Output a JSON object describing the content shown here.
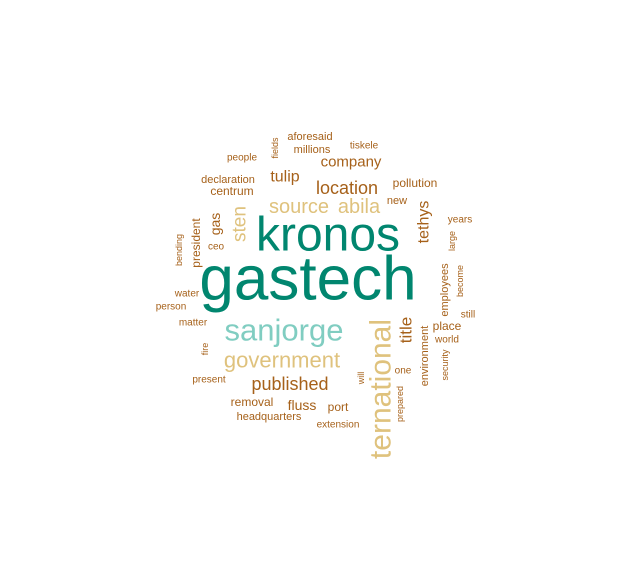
{
  "chart_data": {
    "type": "wordcloud",
    "title": "",
    "palette": {
      "top": "#01866f",
      "high": "#80cdc1",
      "mid": "#dfc27d",
      "base": "#a6611a"
    },
    "words": [
      {
        "text": "gastech",
        "weight": 100,
        "tier": "top",
        "vertical": false
      },
      {
        "text": "kronos",
        "weight": 72,
        "tier": "top",
        "vertical": false
      },
      {
        "text": "sanjorge",
        "weight": 48,
        "tier": "high",
        "vertical": false
      },
      {
        "text": "ternational",
        "weight": 48,
        "tier": "mid",
        "vertical": true
      },
      {
        "text": "government",
        "weight": 34,
        "tier": "mid",
        "vertical": false
      },
      {
        "text": "source",
        "weight": 30,
        "tier": "mid",
        "vertical": false
      },
      {
        "text": "abila",
        "weight": 30,
        "tier": "mid",
        "vertical": false
      },
      {
        "text": "sten",
        "weight": 28,
        "tier": "mid",
        "vertical": true
      },
      {
        "text": "published",
        "weight": 27,
        "tier": "base",
        "vertical": false
      },
      {
        "text": "location",
        "weight": 27,
        "tier": "base",
        "vertical": false
      },
      {
        "text": "title",
        "weight": 26,
        "tier": "base",
        "vertical": true
      },
      {
        "text": "tethys",
        "weight": 24,
        "tier": "base",
        "vertical": true
      },
      {
        "text": "tulip",
        "weight": 24,
        "tier": "base",
        "vertical": false
      },
      {
        "text": "company",
        "weight": 22,
        "tier": "base",
        "vertical": false
      },
      {
        "text": "gas",
        "weight": 20,
        "tier": "base",
        "vertical": true
      },
      {
        "text": "fluss",
        "weight": 20,
        "tier": "base",
        "vertical": false
      },
      {
        "text": "president",
        "weight": 17,
        "tier": "base",
        "vertical": true
      },
      {
        "text": "centrum",
        "weight": 17,
        "tier": "base",
        "vertical": false
      },
      {
        "text": "port",
        "weight": 17,
        "tier": "base",
        "vertical": false
      },
      {
        "text": "place",
        "weight": 16,
        "tier": "base",
        "vertical": false
      },
      {
        "text": "pollution",
        "weight": 16,
        "tier": "base",
        "vertical": false
      },
      {
        "text": "removal",
        "weight": 16,
        "tier": "base",
        "vertical": false
      },
      {
        "text": "new",
        "weight": 15,
        "tier": "base",
        "vertical": false
      },
      {
        "text": "environment",
        "weight": 15,
        "tier": "base",
        "vertical": true
      },
      {
        "text": "millions",
        "weight": 15,
        "tier": "base",
        "vertical": false
      },
      {
        "text": "declaration",
        "weight": 14,
        "tier": "base",
        "vertical": false
      },
      {
        "text": "headquarters",
        "weight": 14,
        "tier": "base",
        "vertical": false
      },
      {
        "text": "employees",
        "weight": 13,
        "tier": "base",
        "vertical": true
      },
      {
        "text": "aforesaid",
        "weight": 13,
        "tier": "base",
        "vertical": false
      },
      {
        "text": "world",
        "weight": 13,
        "tier": "base",
        "vertical": false
      },
      {
        "text": "one",
        "weight": 13,
        "tier": "base",
        "vertical": false
      },
      {
        "text": "extension",
        "weight": 13,
        "tier": "base",
        "vertical": false
      },
      {
        "text": "people",
        "weight": 13,
        "tier": "base",
        "vertical": false
      },
      {
        "text": "tiskele",
        "weight": 12,
        "tier": "base",
        "vertical": false
      },
      {
        "text": "present",
        "weight": 12,
        "tier": "base",
        "vertical": false
      },
      {
        "text": "water",
        "weight": 12,
        "tier": "base",
        "vertical": false
      },
      {
        "text": "matter",
        "weight": 12,
        "tier": "base",
        "vertical": false
      },
      {
        "text": "person",
        "weight": 12,
        "tier": "base",
        "vertical": false
      },
      {
        "text": "ceo",
        "weight": 12,
        "tier": "base",
        "vertical": false
      },
      {
        "text": "years",
        "weight": 12,
        "tier": "base",
        "vertical": false
      },
      {
        "text": "still",
        "weight": 12,
        "tier": "base",
        "vertical": false
      },
      {
        "text": "become",
        "weight": 11,
        "tier": "base",
        "vertical": true
      },
      {
        "text": "large",
        "weight": 11,
        "tier": "base",
        "vertical": true
      },
      {
        "text": "security",
        "weight": 11,
        "tier": "base",
        "vertical": true
      },
      {
        "text": "prepared",
        "weight": 11,
        "tier": "base",
        "vertical": true
      },
      {
        "text": "will",
        "weight": 11,
        "tier": "base",
        "vertical": true
      },
      {
        "text": "bending",
        "weight": 11,
        "tier": "base",
        "vertical": true
      },
      {
        "text": "fields",
        "weight": 11,
        "tier": "base",
        "vertical": true
      },
      {
        "text": "fire",
        "weight": 11,
        "tier": "base",
        "vertical": true
      }
    ]
  }
}
